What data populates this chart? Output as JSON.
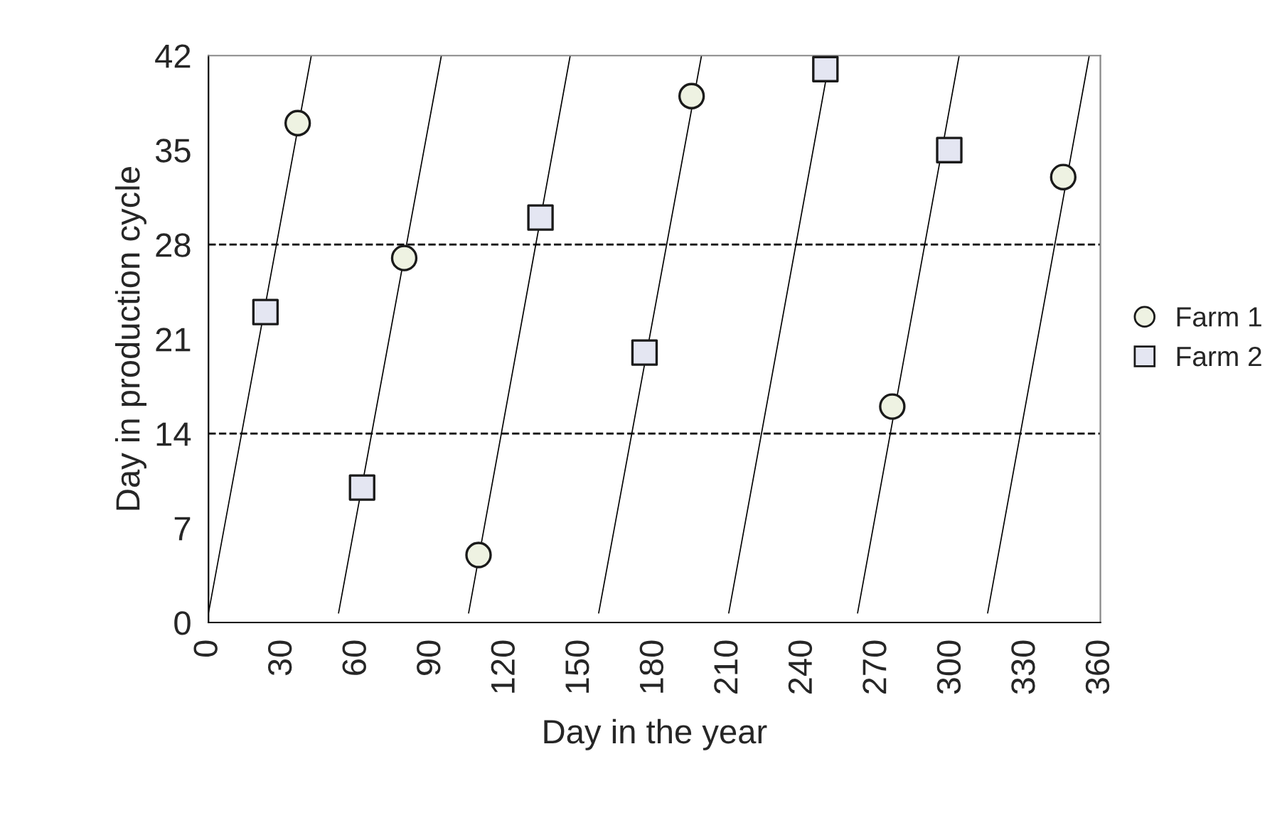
{
  "chart_data": {
    "type": "scatter",
    "xlabel": "Day in the year",
    "ylabel": "Day in production cycle",
    "xlim": [
      0,
      360
    ],
    "xticks": [
      0,
      30,
      60,
      90,
      120,
      150,
      180,
      210,
      240,
      270,
      300,
      330,
      360
    ],
    "ylim": [
      0,
      42
    ],
    "yticks": [
      0,
      7,
      14,
      21,
      28,
      35,
      42
    ],
    "grid": false,
    "legend": "right",
    "series": [
      {
        "type": "line",
        "color": "#000000",
        "x": [
          0,
          41.5
        ],
        "values": [
          0.7,
          42
        ]
      },
      {
        "type": "line",
        "color": "#000000",
        "x": [
          52.5,
          94
        ],
        "values": [
          0.7,
          42
        ]
      },
      {
        "type": "line",
        "color": "#000000",
        "x": [
          105,
          146
        ],
        "values": [
          0.7,
          42
        ]
      },
      {
        "type": "line",
        "color": "#000000",
        "x": [
          157.5,
          199
        ],
        "values": [
          0.7,
          42
        ]
      },
      {
        "type": "line",
        "color": "#000000",
        "x": [
          210,
          251
        ],
        "values": [
          0.7,
          42
        ]
      },
      {
        "type": "line",
        "color": "#000000",
        "x": [
          262,
          303
        ],
        "values": [
          0.7,
          42
        ]
      },
      {
        "type": "line",
        "color": "#000000",
        "x": [
          314.5,
          355.5
        ],
        "values": [
          0.7,
          42
        ]
      },
      {
        "name": "Farm 1",
        "color": "#eef2e2",
        "marker": "circle",
        "x": [
          36,
          79,
          109,
          195,
          276,
          345
        ],
        "values": [
          37,
          27,
          5,
          39,
          16,
          33
        ]
      },
      {
        "name": "Farm 2",
        "color": "#e4e6f2",
        "marker": "square",
        "x": [
          23,
          62,
          134,
          176,
          249,
          299
        ],
        "values": [
          23,
          10,
          30,
          20,
          41,
          35
        ]
      }
    ],
    "ref_lines": [
      {
        "axis": "y",
        "value": 14,
        "line_style": "dashed",
        "color": "#000000"
      },
      {
        "axis": "y",
        "value": 28,
        "line_style": "dashed",
        "color": "#000000"
      }
    ]
  }
}
